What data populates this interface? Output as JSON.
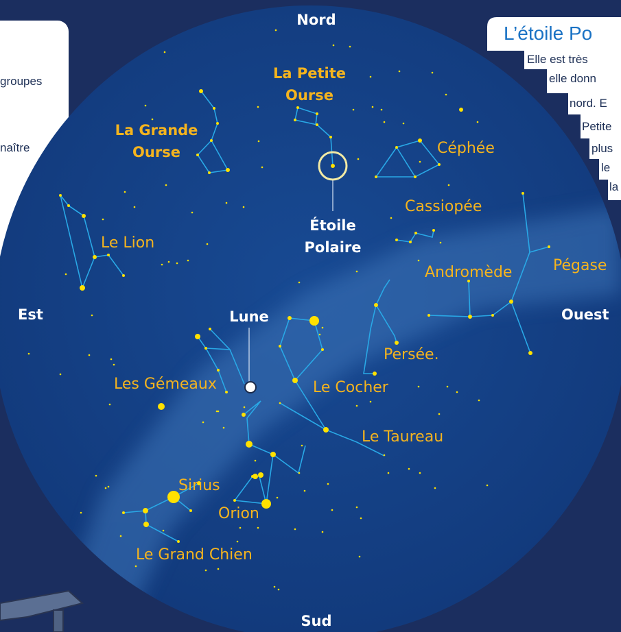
{
  "compass": {
    "north": "Nord",
    "east": "Est",
    "west": "Ouest",
    "south": "Sud"
  },
  "constellations": {
    "petite_ourse": [
      "La Petite",
      "Ourse"
    ],
    "grande_ourse": [
      "La Grande",
      "Ourse"
    ],
    "cephee": "Céphée",
    "cassiopee": "Cassiopée",
    "lion": "Le Lion",
    "andromede": "Andromède",
    "pegase": "Pégase",
    "persee": "Persée.",
    "cocher": "Le Cocher",
    "taureau": "Le Taureau",
    "gemeaux": "Les Gémeaux",
    "sirius": "Sirius",
    "orion": "Orion",
    "grand_chien": "Le Grand Chien"
  },
  "markers": {
    "polaris": [
      "Étoile",
      "Polaire"
    ],
    "moon": "Lune"
  },
  "left_card": {
    "lines": [
      "groupes",
      "naître"
    ]
  },
  "polaris_card": {
    "title": "L’étoile Po",
    "lines": [
      "Elle est très",
      "elle donn",
      "nord. E",
      "Petite",
      "plus",
      "le",
      "la"
    ]
  }
}
